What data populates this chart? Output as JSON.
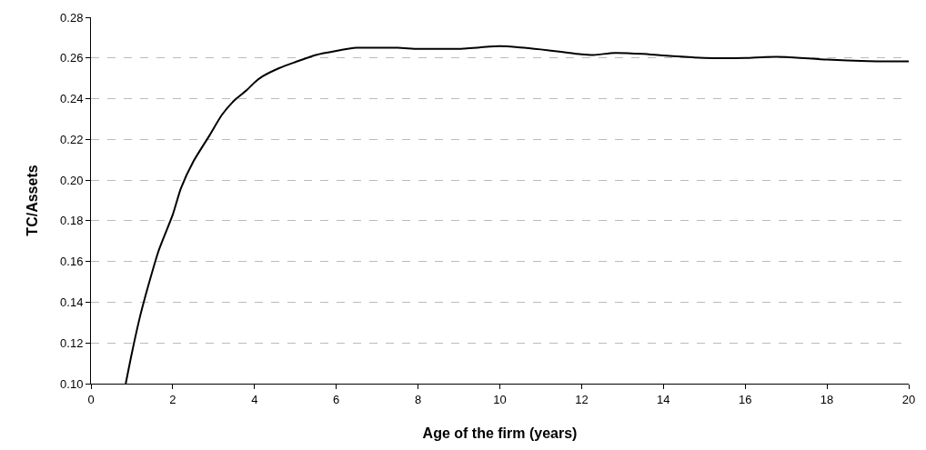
{
  "chart_data": {
    "type": "line",
    "xlabel": "Age of the firm (years)",
    "ylabel": "TC/Assets",
    "x": [
      0.85,
      1.0,
      1.2,
      1.4,
      1.65,
      2.0,
      2.2,
      2.5,
      2.9,
      3.2,
      3.5,
      3.8,
      4.0,
      4.2,
      4.6,
      5.0,
      5.5,
      6.0,
      6.5,
      7.0,
      7.5,
      8.0,
      8.5,
      9.0,
      9.5,
      10.0,
      10.5,
      11.0,
      11.5,
      12.0,
      12.3,
      12.8,
      13.5,
      14.0,
      15.0,
      16.0,
      16.5,
      17.0,
      18.0,
      19.0,
      20.0
    ],
    "series": [
      {
        "color": "#000000",
        "values": [
          0.1,
          0.115,
          0.133,
          0.148,
          0.165,
          0.183,
          0.196,
          0.209,
          0.222,
          0.232,
          0.239,
          0.244,
          0.248,
          0.251,
          0.255,
          0.258,
          0.2615,
          0.2635,
          0.265,
          0.265,
          0.265,
          0.2645,
          0.2645,
          0.2645,
          0.2652,
          0.2658,
          0.2652,
          0.2642,
          0.263,
          0.2618,
          0.2615,
          0.2625,
          0.262,
          0.2612,
          0.26,
          0.26,
          0.2605,
          0.2605,
          0.2592,
          0.2585,
          0.2583
        ]
      }
    ],
    "xlim": [
      0,
      20
    ],
    "xticks": [
      0,
      2,
      4,
      6,
      8,
      10,
      12,
      14,
      16,
      18,
      20
    ],
    "ylim": [
      0.1,
      0.28
    ],
    "yticks": [
      {
        "value": 0.1,
        "label": "0.10"
      },
      {
        "value": 0.12,
        "label": "0.12"
      },
      {
        "value": 0.14,
        "label": "0.14"
      },
      {
        "value": 0.16,
        "label": "0.16"
      },
      {
        "value": 0.18,
        "label": "0.18"
      },
      {
        "value": 0.2,
        "label": "0.20"
      },
      {
        "value": 0.22,
        "label": "0.22"
      },
      {
        "value": 0.24,
        "label": "0.24"
      },
      {
        "value": 0.26,
        "label": "0.26"
      },
      {
        "value": 0.28,
        "label": "0.28"
      }
    ],
    "grid": "y",
    "line_style": "solid",
    "marker": "none"
  }
}
